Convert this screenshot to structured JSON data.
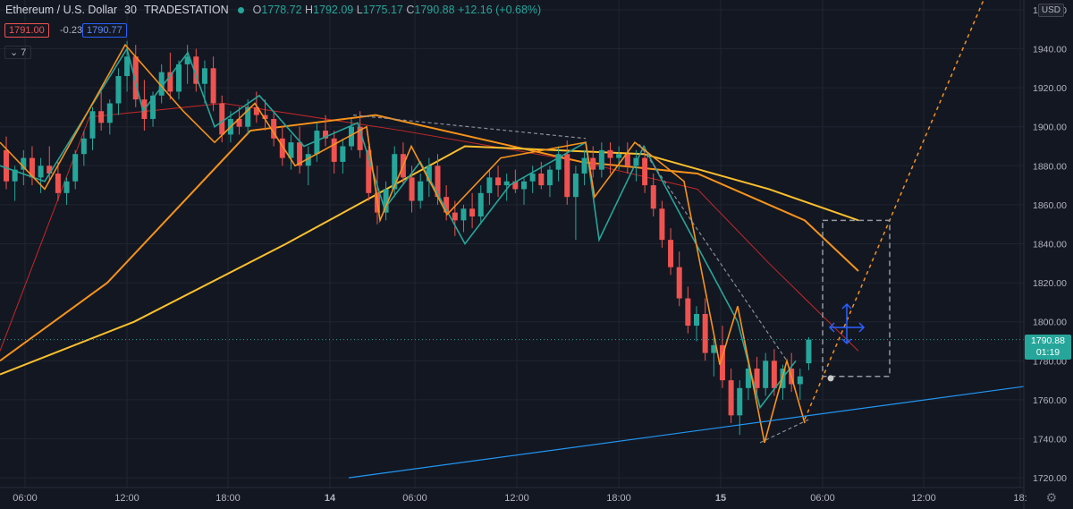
{
  "header": {
    "symbol": "Ethereum / U.S. Dollar",
    "interval": "30",
    "exchange": "TRADESTATION",
    "open_label": "O",
    "open": "1778.72",
    "high_label": "H",
    "high": "1792.09",
    "low_label": "L",
    "low": "1775.17",
    "close_label": "C",
    "close": "1790.88",
    "change": "+12.16 (+0.68%)",
    "bid": "1791.00",
    "spread": "-0.23",
    "ask": "1790.77",
    "indicators_toggle": "7"
  },
  "price_axis": {
    "currency": "USD",
    "last_price": "1790.88",
    "countdown": "01:19"
  },
  "colors": {
    "up": "#26a69a",
    "down": "#ef5350",
    "ma_fast": "#c62828",
    "ma_mid": "#f7931a",
    "ma_slow": "#fbc02d",
    "trendline": "#2196f3"
  },
  "chart_data": {
    "type": "candlestick",
    "symbol": "Ethereum / U.S. Dollar",
    "interval_minutes": 30,
    "y_ticks": [
      1720,
      1740,
      1760,
      1780,
      1800,
      1820,
      1840,
      1860,
      1880,
      1900,
      1920,
      1940,
      1960
    ],
    "ylim": [
      1715,
      1965
    ],
    "x_ticks": [
      "06:00",
      "12:00",
      "18:00",
      "14",
      "06:00",
      "12:00",
      "18:00",
      "15",
      "06:00",
      "12:00",
      "18:"
    ],
    "grid": true,
    "candles": [
      [
        1888,
        1895,
        1868,
        1872
      ],
      [
        1872,
        1880,
        1862,
        1878
      ],
      [
        1878,
        1888,
        1870,
        1884
      ],
      [
        1884,
        1890,
        1870,
        1874
      ],
      [
        1874,
        1884,
        1866,
        1880
      ],
      [
        1880,
        1890,
        1872,
        1876
      ],
      [
        1876,
        1882,
        1862,
        1866
      ],
      [
        1866,
        1874,
        1860,
        1872
      ],
      [
        1872,
        1888,
        1868,
        1886
      ],
      [
        1886,
        1898,
        1880,
        1894
      ],
      [
        1894,
        1910,
        1888,
        1908
      ],
      [
        1908,
        1918,
        1898,
        1902
      ],
      [
        1902,
        1914,
        1896,
        1912
      ],
      [
        1912,
        1930,
        1906,
        1926
      ],
      [
        1926,
        1944,
        1918,
        1936
      ],
      [
        1936,
        1942,
        1910,
        1914
      ],
      [
        1914,
        1924,
        1898,
        1904
      ],
      [
        1904,
        1918,
        1900,
        1916
      ],
      [
        1916,
        1932,
        1912,
        1928
      ],
      [
        1928,
        1938,
        1914,
        1918
      ],
      [
        1918,
        1934,
        1914,
        1932
      ],
      [
        1932,
        1942,
        1922,
        1936
      ],
      [
        1936,
        1940,
        1918,
        1922
      ],
      [
        1922,
        1934,
        1912,
        1930
      ],
      [
        1930,
        1936,
        1908,
        1912
      ],
      [
        1912,
        1916,
        1892,
        1896
      ],
      [
        1896,
        1908,
        1892,
        1904
      ],
      [
        1904,
        1910,
        1896,
        1900
      ],
      [
        1900,
        1914,
        1896,
        1910
      ],
      [
        1910,
        1918,
        1902,
        1906
      ],
      [
        1906,
        1914,
        1898,
        1904
      ],
      [
        1904,
        1908,
        1890,
        1894
      ],
      [
        1894,
        1900,
        1880,
        1884
      ],
      [
        1884,
        1896,
        1878,
        1892
      ],
      [
        1892,
        1900,
        1876,
        1880
      ],
      [
        1880,
        1890,
        1870,
        1886
      ],
      [
        1886,
        1902,
        1882,
        1898
      ],
      [
        1898,
        1906,
        1890,
        1894
      ],
      [
        1894,
        1898,
        1876,
        1882
      ],
      [
        1882,
        1894,
        1876,
        1890
      ],
      [
        1890,
        1904,
        1888,
        1900
      ],
      [
        1900,
        1908,
        1884,
        1888
      ],
      [
        1888,
        1890,
        1862,
        1866
      ],
      [
        1866,
        1880,
        1850,
        1856
      ],
      [
        1856,
        1872,
        1852,
        1868
      ],
      [
        1868,
        1890,
        1864,
        1886
      ],
      [
        1886,
        1892,
        1870,
        1874
      ],
      [
        1874,
        1880,
        1856,
        1862
      ],
      [
        1862,
        1876,
        1858,
        1872
      ],
      [
        1872,
        1884,
        1864,
        1880
      ],
      [
        1880,
        1886,
        1860,
        1864
      ],
      [
        1864,
        1870,
        1852,
        1856
      ],
      [
        1856,
        1862,
        1844,
        1852
      ],
      [
        1852,
        1860,
        1846,
        1858
      ],
      [
        1858,
        1866,
        1848,
        1854
      ],
      [
        1854,
        1870,
        1850,
        1866
      ],
      [
        1866,
        1878,
        1860,
        1874
      ],
      [
        1874,
        1880,
        1864,
        1870
      ],
      [
        1870,
        1876,
        1862,
        1872
      ],
      [
        1872,
        1878,
        1866,
        1868
      ],
      [
        1868,
        1874,
        1860,
        1872
      ],
      [
        1872,
        1880,
        1866,
        1876
      ],
      [
        1876,
        1882,
        1868,
        1870
      ],
      [
        1870,
        1880,
        1864,
        1878
      ],
      [
        1878,
        1890,
        1872,
        1886
      ],
      [
        1886,
        1893,
        1860,
        1864
      ],
      [
        1864,
        1880,
        1842,
        1876
      ],
      [
        1876,
        1888,
        1870,
        1884
      ],
      [
        1884,
        1890,
        1874,
        1878
      ],
      [
        1878,
        1892,
        1874,
        1888
      ],
      [
        1888,
        1892,
        1876,
        1884
      ],
      [
        1884,
        1890,
        1878,
        1886
      ],
      [
        1886,
        1892,
        1876,
        1880
      ],
      [
        1880,
        1888,
        1872,
        1884
      ],
      [
        1884,
        1890,
        1866,
        1870
      ],
      [
        1870,
        1876,
        1854,
        1858
      ],
      [
        1858,
        1862,
        1838,
        1842
      ],
      [
        1842,
        1848,
        1824,
        1828
      ],
      [
        1828,
        1836,
        1808,
        1812
      ],
      [
        1812,
        1818,
        1794,
        1798
      ],
      [
        1798,
        1808,
        1790,
        1804
      ],
      [
        1804,
        1812,
        1780,
        1784
      ],
      [
        1784,
        1792,
        1772,
        1788
      ],
      [
        1788,
        1798,
        1766,
        1770
      ],
      [
        1770,
        1776,
        1748,
        1752
      ],
      [
        1752,
        1770,
        1742,
        1766
      ],
      [
        1766,
        1780,
        1760,
        1776
      ],
      [
        1776,
        1782,
        1762,
        1766
      ],
      [
        1766,
        1784,
        1762,
        1780
      ],
      [
        1780,
        1786,
        1762,
        1766
      ],
      [
        1766,
        1778,
        1760,
        1776
      ],
      [
        1776,
        1784,
        1764,
        1768
      ],
      [
        1768,
        1776,
        1760,
        1772
      ],
      [
        1778.72,
        1792.09,
        1775.17,
        1790.88
      ]
    ],
    "moving_averages": [
      {
        "color": "#c62828",
        "points": [
          [
            0,
            1785
          ],
          [
            100,
            1905
          ],
          [
            250,
            1912
          ],
          [
            450,
            1898
          ],
          [
            650,
            1882
          ],
          [
            780,
            1868
          ],
          [
            860,
            1830
          ],
          [
            960,
            1785
          ]
        ]
      },
      {
        "color": "#f7931a",
        "points": [
          [
            0,
            1780
          ],
          [
            120,
            1820
          ],
          [
            280,
            1898
          ],
          [
            420,
            1906
          ],
          [
            650,
            1882
          ],
          [
            780,
            1876
          ],
          [
            900,
            1852
          ],
          [
            960,
            1826
          ]
        ]
      },
      {
        "color": "#fbc02d",
        "points": [
          [
            0,
            1773
          ],
          [
            150,
            1800
          ],
          [
            320,
            1840
          ],
          [
            520,
            1890
          ],
          [
            720,
            1886
          ],
          [
            860,
            1868
          ],
          [
            960,
            1852
          ]
        ]
      }
    ],
    "zigzag_orange": [
      [
        0,
        1892
      ],
      [
        50,
        1868
      ],
      [
        140,
        1942
      ],
      [
        205,
        1908
      ],
      [
        240,
        1892
      ],
      [
        285,
        1912
      ],
      [
        330,
        1880
      ],
      [
        410,
        1900
      ],
      [
        425,
        1852
      ],
      [
        460,
        1890
      ],
      [
        500,
        1855
      ],
      [
        560,
        1884
      ],
      [
        655,
        1892
      ],
      [
        665,
        1864
      ],
      [
        710,
        1892
      ],
      [
        765,
        1872
      ],
      [
        805,
        1778
      ],
      [
        825,
        1808
      ],
      [
        855,
        1738
      ],
      [
        880,
        1780
      ],
      [
        900,
        1748
      ]
    ],
    "zigzag_teal": [
      [
        0,
        1880
      ],
      [
        50,
        1872
      ],
      [
        142,
        1940
      ],
      [
        160,
        1908
      ],
      [
        210,
        1938
      ],
      [
        240,
        1900
      ],
      [
        290,
        1916
      ],
      [
        340,
        1890
      ],
      [
        400,
        1902
      ],
      [
        430,
        1858
      ],
      [
        470,
        1882
      ],
      [
        520,
        1840
      ],
      [
        570,
        1870
      ],
      [
        655,
        1892
      ],
      [
        670,
        1842
      ],
      [
        720,
        1890
      ],
      [
        790,
        1830
      ],
      [
        825,
        1800
      ],
      [
        850,
        1756
      ],
      [
        890,
        1780
      ]
    ],
    "dashed_grey": [
      [
        [
          395,
          1906
        ],
        [
          655,
          1894
        ]
      ],
      [
        [
          715,
          1891
        ],
        [
          880,
          1780
        ]
      ],
      [
        [
          850,
          1738
        ],
        [
          905,
          1750
        ]
      ]
    ],
    "projection_orange": [
      [
        900,
        1750
      ],
      [
        1100,
        1965
      ]
    ],
    "trendline_blue": [
      [
        390,
        1720
      ],
      [
        1148,
        1767
      ]
    ],
    "box": {
      "x1": 920,
      "x2": 995,
      "top": 1852,
      "bottom": 1772
    },
    "last_price": 1790.88
  }
}
